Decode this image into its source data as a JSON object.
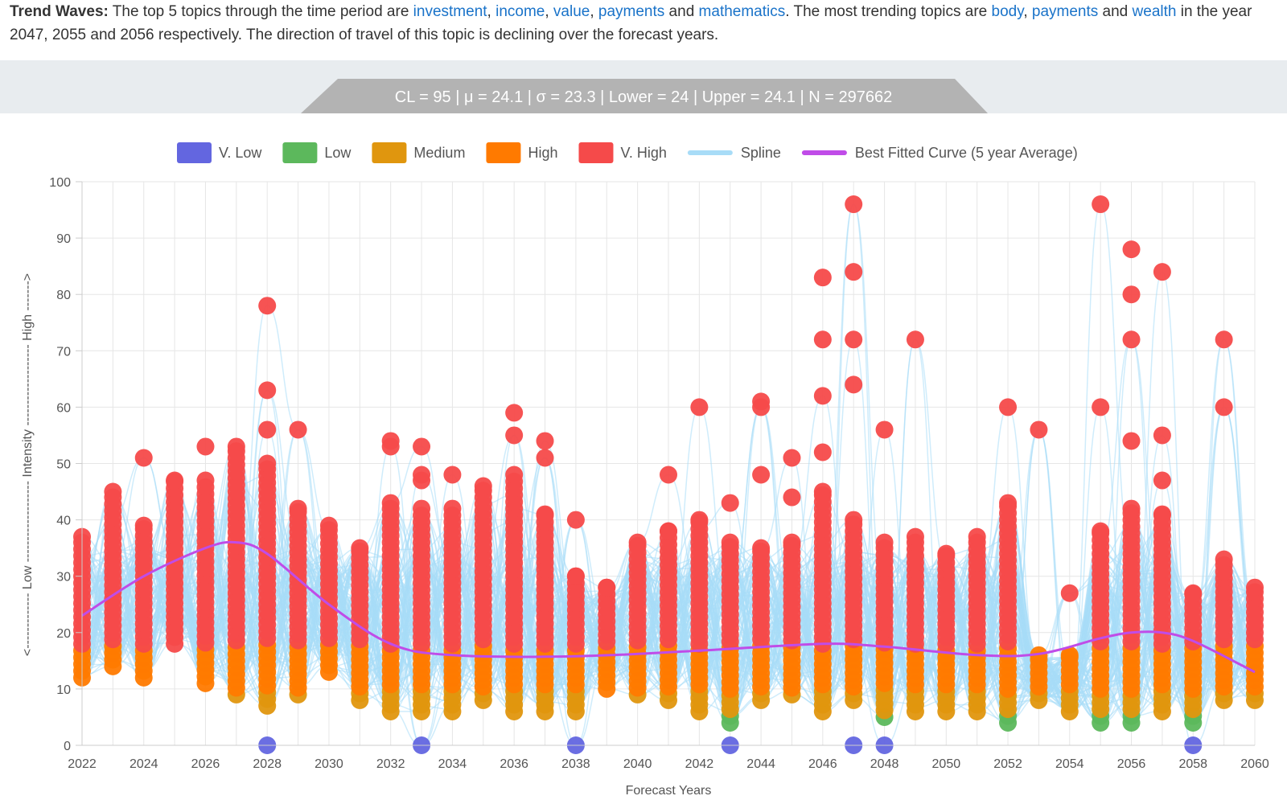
{
  "summary": {
    "lead": "Trend Waves:",
    "t1": " The top 5 topics through the time period are ",
    "top": [
      "investment",
      "income",
      "value",
      "payments",
      "mathematics"
    ],
    "t2": ". The most trending topics are ",
    "trend": [
      "body",
      "payments",
      "wealth"
    ],
    "t3": " in the year 2047, 2055 and 2056 respectively. The direction of travel of this topic is declining over the forecast years."
  },
  "stats": {
    "text": "CL = 95 | μ = 24.1 | σ = 23.3 | Lower = 24 | Upper = 24.1 | N = 297662"
  },
  "colors": {
    "vlow": "#6366e0",
    "low": "#5cb85c",
    "medium": "#e0960e",
    "high": "#ff7a00",
    "vhigh": "#f54a4a",
    "spline": "#a8dcf7",
    "best": "#c04ce8"
  },
  "chart_data": {
    "type": "scatter",
    "xlabel": "Forecast Years",
    "ylabel": "Intensity",
    "ylabel_low": "<------------- Low",
    "ylabel_high": "High ------->",
    "ylabel_dash": "-------------------",
    "xlim": [
      2022,
      2060
    ],
    "ylim": [
      0,
      100
    ],
    "x_ticks": [
      2022,
      2024,
      2026,
      2028,
      2030,
      2032,
      2034,
      2036,
      2038,
      2040,
      2042,
      2044,
      2046,
      2048,
      2050,
      2052,
      2054,
      2056,
      2058,
      2060
    ],
    "y_ticks": [
      0,
      10,
      20,
      30,
      40,
      50,
      60,
      70,
      80,
      90,
      100
    ],
    "legend_position": "top-center",
    "legend": [
      {
        "name": "V. Low",
        "key": "vlow"
      },
      {
        "name": "Low",
        "key": "low"
      },
      {
        "name": "Medium",
        "key": "medium"
      },
      {
        "name": "High",
        "key": "high"
      },
      {
        "name": "V. High",
        "key": "vhigh"
      },
      {
        "name": "Spline",
        "key": "spline",
        "line": true
      },
      {
        "name": "Best Fitted Curve (5 year Average)",
        "key": "best",
        "line": true
      }
    ],
    "series": [
      {
        "year": 2022,
        "max": 37,
        "min": 12,
        "extra": []
      },
      {
        "year": 2023,
        "max": 45,
        "min": 14,
        "extra": []
      },
      {
        "year": 2024,
        "max": 39,
        "min": 12,
        "extra": [
          51
        ]
      },
      {
        "year": 2025,
        "max": 47,
        "min": 18,
        "extra": []
      },
      {
        "year": 2026,
        "max": 47,
        "min": 11,
        "extra": [
          53
        ]
      },
      {
        "year": 2027,
        "max": 53,
        "min": 9,
        "extra": []
      },
      {
        "year": 2028,
        "max": 50,
        "min": 7,
        "extra": [
          56,
          63,
          78,
          0
        ]
      },
      {
        "year": 2029,
        "max": 42,
        "min": 9,
        "extra": [
          56
        ]
      },
      {
        "year": 2030,
        "max": 39,
        "min": 13,
        "extra": []
      },
      {
        "year": 2031,
        "max": 35,
        "min": 8,
        "extra": []
      },
      {
        "year": 2032,
        "max": 43,
        "min": 6,
        "extra": [
          53,
          54
        ]
      },
      {
        "year": 2033,
        "max": 42,
        "min": 6,
        "extra": [
          47,
          48,
          53,
          0
        ]
      },
      {
        "year": 2034,
        "max": 42,
        "min": 6,
        "extra": [
          48
        ]
      },
      {
        "year": 2035,
        "max": 46,
        "min": 8,
        "extra": []
      },
      {
        "year": 2036,
        "max": 48,
        "min": 6,
        "extra": [
          55,
          59
        ]
      },
      {
        "year": 2037,
        "max": 41,
        "min": 6,
        "extra": [
          51,
          54
        ]
      },
      {
        "year": 2038,
        "max": 30,
        "min": 6,
        "extra": [
          40,
          0
        ]
      },
      {
        "year": 2039,
        "max": 28,
        "min": 10,
        "extra": []
      },
      {
        "year": 2040,
        "max": 36,
        "min": 9,
        "extra": []
      },
      {
        "year": 2041,
        "max": 38,
        "min": 8,
        "extra": [
          48
        ]
      },
      {
        "year": 2042,
        "max": 40,
        "min": 6,
        "extra": [
          60
        ]
      },
      {
        "year": 2043,
        "max": 36,
        "min": 4,
        "extra": [
          43,
          0
        ]
      },
      {
        "year": 2044,
        "max": 35,
        "min": 8,
        "extra": [
          48,
          60,
          61
        ]
      },
      {
        "year": 2045,
        "max": 36,
        "min": 9,
        "extra": [
          44,
          51
        ]
      },
      {
        "year": 2046,
        "max": 45,
        "min": 6,
        "extra": [
          52,
          62,
          72,
          83
        ]
      },
      {
        "year": 2047,
        "max": 40,
        "min": 8,
        "extra": [
          64,
          72,
          84,
          96,
          0
        ]
      },
      {
        "year": 2048,
        "max": 36,
        "min": 5,
        "extra": [
          56,
          0
        ]
      },
      {
        "year": 2049,
        "max": 37,
        "min": 6,
        "extra": [
          72
        ]
      },
      {
        "year": 2050,
        "max": 34,
        "min": 6,
        "extra": []
      },
      {
        "year": 2051,
        "max": 37,
        "min": 6,
        "extra": []
      },
      {
        "year": 2052,
        "max": 43,
        "min": 4,
        "extra": [
          60
        ]
      },
      {
        "year": 2053,
        "max": 16,
        "min": 8,
        "extra": [
          56
        ]
      },
      {
        "year": 2054,
        "max": 16,
        "min": 6,
        "extra": [
          27
        ]
      },
      {
        "year": 2055,
        "max": 38,
        "min": 4,
        "extra": [
          60,
          96
        ]
      },
      {
        "year": 2056,
        "max": 42,
        "min": 4,
        "extra": [
          54,
          72,
          80,
          88
        ]
      },
      {
        "year": 2057,
        "max": 41,
        "min": 6,
        "extra": [
          47,
          55,
          84
        ]
      },
      {
        "year": 2058,
        "max": 27,
        "min": 4,
        "extra": [
          0
        ]
      },
      {
        "year": 2059,
        "max": 33,
        "min": 8,
        "extra": [
          60,
          72
        ]
      },
      {
        "year": 2060,
        "max": 28,
        "min": 8,
        "extra": []
      }
    ],
    "best_fit_curve": [
      {
        "x": 2022,
        "y": 23
      },
      {
        "x": 2024,
        "y": 30
      },
      {
        "x": 2026,
        "y": 35
      },
      {
        "x": 2027,
        "y": 36
      },
      {
        "x": 2028,
        "y": 34
      },
      {
        "x": 2030,
        "y": 25
      },
      {
        "x": 2032,
        "y": 18
      },
      {
        "x": 2034,
        "y": 16
      },
      {
        "x": 2038,
        "y": 15.8
      },
      {
        "x": 2042,
        "y": 16.8
      },
      {
        "x": 2046,
        "y": 18
      },
      {
        "x": 2048,
        "y": 17.5
      },
      {
        "x": 2051,
        "y": 16
      },
      {
        "x": 2053,
        "y": 16.2
      },
      {
        "x": 2055,
        "y": 19
      },
      {
        "x": 2056,
        "y": 20
      },
      {
        "x": 2057,
        "y": 20
      },
      {
        "x": 2058,
        "y": 18.5
      },
      {
        "x": 2060,
        "y": 13
      }
    ]
  }
}
